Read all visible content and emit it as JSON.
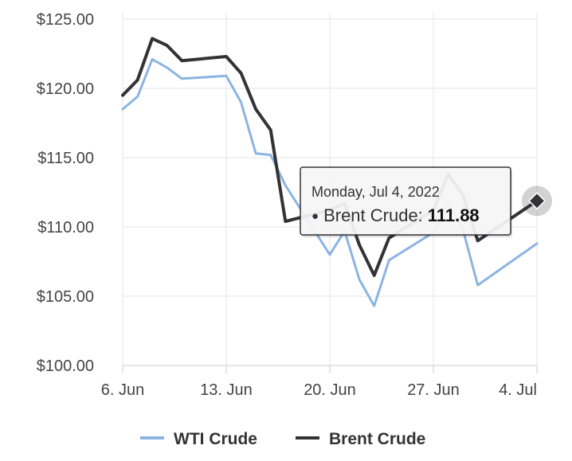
{
  "chart_data": {
    "type": "line",
    "x_ticks": [
      "6. Jun",
      "13. Jun",
      "20. Jun",
      "27. Jun",
      "4. Jul"
    ],
    "y_ticks": [
      "$100.00",
      "$105.00",
      "$110.00",
      "$115.00",
      "$120.00",
      "$125.00"
    ],
    "ylim": [
      100,
      125
    ],
    "xlim": [
      "2022-06-06",
      "2022-07-04"
    ],
    "grid": true,
    "legend_position": "bottom",
    "series": [
      {
        "name": "WTI Crude",
        "color": "#8cb4e2",
        "points": [
          {
            "date": "2022-06-06",
            "value": 118.5
          },
          {
            "date": "2022-06-07",
            "value": 119.4
          },
          {
            "date": "2022-06-08",
            "value": 122.1
          },
          {
            "date": "2022-06-09",
            "value": 121.5
          },
          {
            "date": "2022-06-10",
            "value": 120.7
          },
          {
            "date": "2022-06-13",
            "value": 120.9
          },
          {
            "date": "2022-06-14",
            "value": 119.0
          },
          {
            "date": "2022-06-15",
            "value": 115.3
          },
          {
            "date": "2022-06-16",
            "value": 115.2
          },
          {
            "date": "2022-06-17",
            "value": 113.0
          },
          {
            "date": "2022-06-20",
            "value": 108.0
          },
          {
            "date": "2022-06-21",
            "value": 109.7
          },
          {
            "date": "2022-06-22",
            "value": 106.2
          },
          {
            "date": "2022-06-23",
            "value": 104.3
          },
          {
            "date": "2022-06-24",
            "value": 107.6
          },
          {
            "date": "2022-06-27",
            "value": 109.6
          },
          {
            "date": "2022-06-28",
            "value": 111.8
          },
          {
            "date": "2022-06-29",
            "value": 109.8
          },
          {
            "date": "2022-06-30",
            "value": 105.8
          },
          {
            "date": "2022-07-04",
            "value": 108.8
          }
        ]
      },
      {
        "name": "Brent Crude",
        "color": "#333336",
        "points": [
          {
            "date": "2022-06-06",
            "value": 119.5
          },
          {
            "date": "2022-06-07",
            "value": 120.6
          },
          {
            "date": "2022-06-08",
            "value": 123.6
          },
          {
            "date": "2022-06-09",
            "value": 123.1
          },
          {
            "date": "2022-06-10",
            "value": 122.0
          },
          {
            "date": "2022-06-13",
            "value": 122.3
          },
          {
            "date": "2022-06-14",
            "value": 121.1
          },
          {
            "date": "2022-06-15",
            "value": 118.5
          },
          {
            "date": "2022-06-16",
            "value": 117.0
          },
          {
            "date": "2022-06-17",
            "value": 110.4
          },
          {
            "date": "2022-06-20",
            "value": 111.2
          },
          {
            "date": "2022-06-21",
            "value": 111.7
          },
          {
            "date": "2022-06-22",
            "value": 108.7
          },
          {
            "date": "2022-06-23",
            "value": 106.5
          },
          {
            "date": "2022-06-24",
            "value": 109.2
          },
          {
            "date": "2022-06-27",
            "value": 111.2
          },
          {
            "date": "2022-06-28",
            "value": 113.8
          },
          {
            "date": "2022-06-29",
            "value": 112.3
          },
          {
            "date": "2022-06-30",
            "value": 109.0
          },
          {
            "date": "2022-07-04",
            "value": 111.88
          }
        ]
      }
    ],
    "tooltip": {
      "date_text": "Monday, Jul 4, 2022",
      "bullet": "●",
      "series_label": "Brent Crude:",
      "value_text": "111.88",
      "series_index": 1,
      "point_index": 19
    },
    "legend": [
      {
        "label": "WTI Crude",
        "color": "#8cb4e2"
      },
      {
        "label": "Brent Crude",
        "color": "#333336"
      }
    ],
    "colors": {
      "grid": "#e6e6e6",
      "axis": "#cccccc",
      "tooltip_border": "#333336"
    }
  }
}
